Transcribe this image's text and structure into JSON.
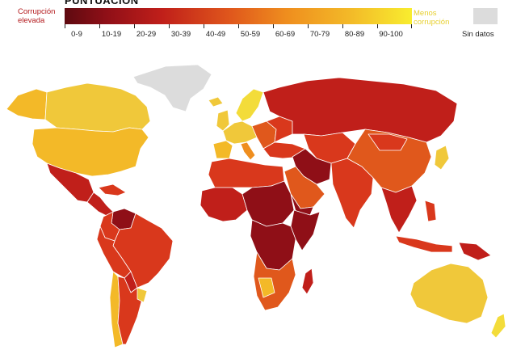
{
  "legend": {
    "title": "PUNTUACIÓN",
    "label_high": "Corrupción elevada",
    "label_low": "Menos corrupción",
    "bins": [
      "0-9",
      "10-19",
      "20-29",
      "30-39",
      "40-49",
      "50-59",
      "60-69",
      "70-79",
      "80-89",
      "90-100"
    ],
    "no_data_label": "Sin datos"
  },
  "colors": {
    "score_0_9": "#5e0a10",
    "score_10_19": "#8f0f17",
    "score_20_29": "#c01f1a",
    "score_30_39": "#d9381c",
    "score_40_49": "#e0581c",
    "score_50_59": "#ef8e1e",
    "score_60_69": "#f3b928",
    "score_70_79": "#f0c83a",
    "score_80_89": "#f3dc3a",
    "score_90_100": "#f8ed2f",
    "no_data": "#dcdcdc"
  }
}
